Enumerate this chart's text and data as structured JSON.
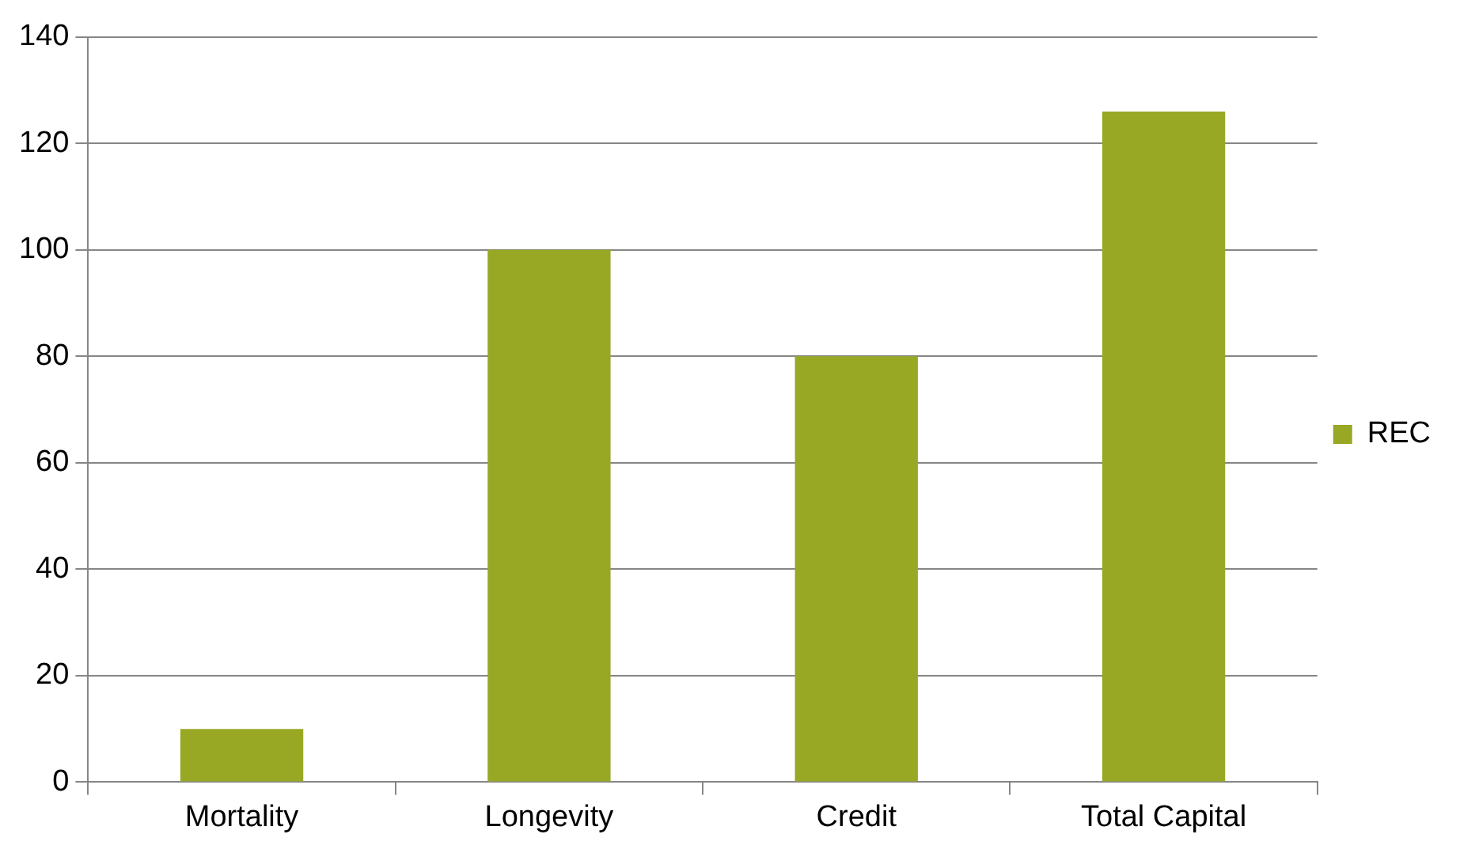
{
  "chart_data": {
    "type": "bar",
    "categories": [
      "Mortality",
      "Longevity",
      "Credit",
      "Total Capital"
    ],
    "series": [
      {
        "name": "REC",
        "color": "#98a824",
        "values": [
          10,
          100,
          80,
          126
        ]
      }
    ],
    "ylim": [
      0,
      140
    ],
    "yticks": [
      0,
      20,
      40,
      60,
      80,
      100,
      120,
      140
    ],
    "grid": "y",
    "legend": "right"
  }
}
